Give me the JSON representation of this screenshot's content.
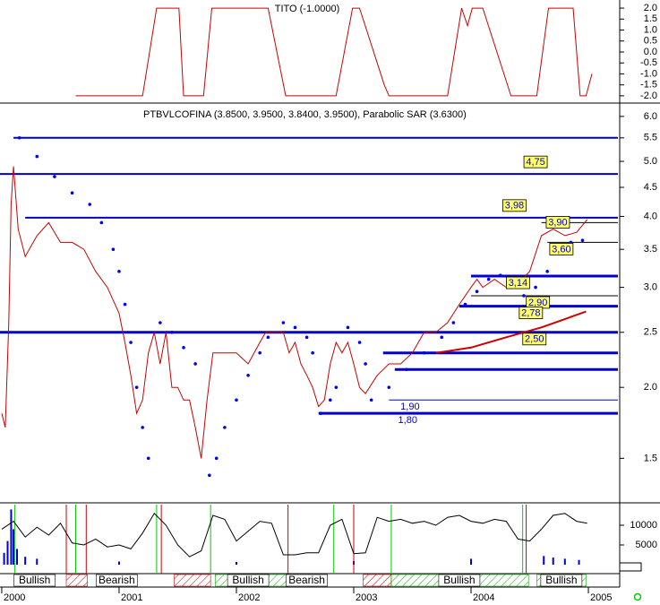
{
  "chart_data": [
    {
      "type": "line",
      "title": "TITO (-1.0000)",
      "color": "#cc0000",
      "xlim": [
        1999.985,
        2005.267
      ],
      "ylim": [
        -2.29,
        2.37
      ],
      "yticks": [
        {
          "value": 2,
          "label": "2.0"
        },
        {
          "value": 1.5,
          "label": "1.5"
        },
        {
          "value": 1,
          "label": "1.0"
        },
        {
          "value": 0.5,
          "label": "0.5"
        },
        {
          "value": 0,
          "label": "0.0"
        },
        {
          "value": -0.5,
          "label": "-0.5"
        },
        {
          "value": -1,
          "label": "-1.0"
        },
        {
          "value": -1.5,
          "label": "-1.5"
        },
        {
          "value": -2,
          "label": "-2.0"
        }
      ],
      "x": [
        2000.63,
        2001.2,
        2001.32,
        2001.51,
        2001.55,
        2001.72,
        2001.79,
        2002.27,
        2002.42,
        2002.85,
        2002.99,
        2003.05,
        2003.26,
        2003.3,
        2003.8,
        2003.92,
        2003.97,
        2004.01,
        2004.1,
        2004.34,
        2004.56,
        2004.66,
        2004.87,
        2004.93,
        2004.98,
        2005.03
      ],
      "values": [
        -2,
        -2,
        2,
        2,
        -2,
        -2,
        2,
        2,
        -2,
        -2,
        2,
        2,
        -1.5,
        -2,
        -2,
        2,
        1.2,
        2,
        2,
        -2,
        -2,
        2,
        2,
        -2,
        -2,
        -1
      ]
    },
    {
      "type": "line",
      "title": "PTBVLCOFINA (3.8500, 3.9500, 3.8400, 3.9500), Parabolic SAR (3.6300)",
      "log_scale": true,
      "xlim": [
        1999.985,
        2005.267
      ],
      "ylim": [
        1.28,
        6.31
      ],
      "yticks": [
        {
          "value": 6,
          "label": "6.0"
        },
        {
          "value": 5.5,
          "label": "5.5"
        },
        {
          "value": 5,
          "label": "5.0"
        },
        {
          "value": 4.5,
          "label": "4.5"
        },
        {
          "value": 4,
          "label": "4.0"
        },
        {
          "value": 3.5,
          "label": "3.5"
        },
        {
          "value": 3,
          "label": "3.0"
        },
        {
          "value": 2.5,
          "label": "2.5"
        },
        {
          "value": 2,
          "label": "2.0"
        },
        {
          "value": 1.5,
          "label": "1.5"
        }
      ],
      "series": [
        {
          "color": "#cc0000",
          "style": "line",
          "x": [
            2000.0,
            2000.03,
            2000.06,
            2000.08,
            2000.1,
            2000.14,
            2000.2,
            2000.3,
            2000.4,
            2000.5,
            2000.6,
            2000.7,
            2000.8,
            2000.9,
            2001.0,
            2001.05,
            2001.1,
            2001.15,
            2001.2,
            2001.25,
            2001.3,
            2001.35,
            2001.4,
            2001.45,
            2001.5,
            2001.55,
            2001.6,
            2001.65,
            2001.7,
            2001.75,
            2001.8,
            2001.9,
            2002.0,
            2002.1,
            2002.2,
            2002.25,
            2002.3,
            2002.4,
            2002.45,
            2002.5,
            2002.55,
            2002.6,
            2002.65,
            2002.7,
            2002.75,
            2002.8,
            2002.85,
            2002.9,
            2002.95,
            2003.0,
            2003.05,
            2003.1,
            2003.2,
            2003.3,
            2003.4,
            2003.5,
            2003.6,
            2003.7,
            2003.8,
            2003.9,
            2004.0,
            2004.05,
            2004.1,
            2004.2,
            2004.3,
            2004.4,
            2004.5,
            2004.6,
            2004.7,
            2004.8,
            2004.9,
            2004.99
          ],
          "values": [
            1.8,
            1.7,
            2.6,
            4.2,
            4.9,
            3.8,
            3.4,
            3.7,
            3.9,
            3.6,
            3.6,
            3.5,
            3.2,
            3.0,
            2.7,
            2.4,
            2.1,
            1.8,
            1.9,
            2.3,
            2.5,
            2.2,
            2.5,
            2.0,
            2.0,
            1.9,
            1.9,
            1.7,
            1.5,
            1.9,
            2.3,
            2.3,
            2.3,
            2.2,
            2.4,
            2.5,
            2.5,
            2.5,
            2.3,
            2.4,
            2.2,
            2.1,
            2.0,
            1.85,
            1.9,
            2.2,
            2.4,
            2.3,
            2.4,
            2.2,
            2.0,
            1.95,
            2.1,
            2.2,
            2.2,
            2.3,
            2.5,
            2.5,
            2.6,
            2.8,
            3.0,
            3.1,
            3.0,
            3.1,
            3.0,
            3.05,
            3.2,
            3.7,
            3.8,
            3.7,
            3.75,
            3.95
          ]
        },
        {
          "color": "#0000ff",
          "style": "dots",
          "x": [
            2000.15,
            2000.3,
            2000.45,
            2000.6,
            2000.75,
            2000.85,
            2000.95,
            2001.0,
            2001.05,
            2001.1,
            2001.15,
            2001.2,
            2001.25,
            2001.35,
            2001.45,
            2001.55,
            2001.65,
            2001.77,
            2001.83,
            2001.9,
            2002.0,
            2002.1,
            2002.2,
            2002.27,
            2002.4,
            2002.5,
            2002.6,
            2002.65,
            2002.72,
            2002.8,
            2002.85,
            2002.95,
            2003.05,
            2003.1,
            2003.15,
            2003.3,
            2003.45,
            2003.6,
            2003.75,
            2003.85,
            2003.95,
            2004.05,
            2004.15,
            2004.25,
            2004.35,
            2004.45,
            2004.55,
            2004.65,
            2004.75,
            2004.85,
            2004.95
          ],
          "values": [
            5.5,
            5.1,
            4.7,
            4.4,
            4.2,
            3.9,
            3.5,
            3.2,
            2.8,
            2.4,
            2.0,
            1.7,
            1.5,
            2.6,
            2.5,
            2.35,
            2.2,
            1.4,
            1.5,
            1.7,
            1.9,
            2.1,
            2.3,
            2.45,
            2.6,
            2.55,
            2.45,
            2.3,
            1.8,
            1.9,
            2.0,
            2.55,
            2.4,
            2.2,
            1.9,
            2.0,
            2.15,
            2.3,
            2.45,
            2.6,
            2.8,
            2.95,
            3.1,
            3.15,
            3.1,
            2.9,
            3.0,
            3.2,
            3.45,
            3.6,
            3.63
          ]
        },
        {
          "color": "#cc0000",
          "style": "line",
          "x": [
            2003.7,
            2004.0,
            2004.3,
            2004.6,
            2004.98
          ],
          "values": [
            2.3,
            2.35,
            2.45,
            2.55,
            2.72
          ]
        }
      ],
      "levels": [
        {
          "value": 5.5,
          "start": 2000.1,
          "color": "#0000cc",
          "width": 2
        },
        {
          "value": 4.75,
          "start": 1999.985,
          "color": "#0000cc",
          "width": 2
        },
        {
          "value": 3.98,
          "start": 2000.2,
          "color": "#0000cc",
          "width": 2
        },
        {
          "value": 3.9,
          "start": 2004.6,
          "color": "#000000",
          "width": 1
        },
        {
          "value": 3.6,
          "start": 2004.65,
          "color": "#000000",
          "width": 1
        },
        {
          "value": 3.14,
          "start": 2004.0,
          "color": "#0000cc",
          "width": 3
        },
        {
          "value": 2.9,
          "start": 2004.0,
          "color": "#000000",
          "width": 1
        },
        {
          "value": 2.78,
          "start": 2003.9,
          "color": "#0000cc",
          "width": 3
        },
        {
          "value": 2.5,
          "start": 1999.985,
          "color": "#0000cc",
          "width": 3
        },
        {
          "value": 2.3,
          "start": 2003.25,
          "color": "#0000cc",
          "width": 3
        },
        {
          "value": 2.15,
          "start": 2003.35,
          "color": "#0000cc",
          "width": 3
        },
        {
          "value": 1.9,
          "start": 2003.3,
          "color": "#0000cc",
          "width": 1
        },
        {
          "value": 1.8,
          "start": 2002.7,
          "color": "#0000cc",
          "width": 3
        }
      ],
      "annotations": [
        {
          "value": 4.75,
          "label": "4,75",
          "x": 2004.55
        },
        {
          "value": 3.98,
          "label": "3,98",
          "x": 2004.37
        },
        {
          "value": 3.9,
          "label": "3,90",
          "x": 2004.74
        },
        {
          "value": 3.6,
          "label": "3,60",
          "x": 2004.77
        },
        {
          "value": 3.14,
          "label": "3,14",
          "x": 2004.4
        },
        {
          "value": 2.9,
          "label": "2,90",
          "x": 2004.57
        },
        {
          "value": 2.78,
          "label": "2,78",
          "x": 2004.51
        },
        {
          "value": 2.5,
          "label": "2,50",
          "x": 2004.54
        },
        {
          "value": 1.9,
          "label": "1,90",
          "x": 2003.48
        },
        {
          "value": 1.8,
          "label": "1,80",
          "x": 2003.46
        }
      ]
    },
    {
      "type": "line",
      "color": "#000000",
      "xlim": [
        1999.985,
        2005.267
      ],
      "ylim": [
        -2270,
        15230
      ],
      "yticks": [
        10000,
        5000
      ],
      "x": [
        2000.0,
        2000.1,
        2000.2,
        2000.3,
        2000.4,
        2000.5,
        2000.6,
        2000.7,
        2000.8,
        2000.9,
        2001.0,
        2001.1,
        2001.2,
        2001.3,
        2001.4,
        2001.5,
        2001.6,
        2001.7,
        2001.8,
        2001.9,
        2002.0,
        2002.1,
        2002.2,
        2002.3,
        2002.4,
        2002.5,
        2002.6,
        2002.7,
        2002.8,
        2002.9,
        2003.0,
        2003.1,
        2003.2,
        2003.3,
        2003.4,
        2003.5,
        2003.6,
        2003.7,
        2003.8,
        2003.9,
        2004.0,
        2004.1,
        2004.2,
        2004.3,
        2004.4,
        2004.5,
        2004.6,
        2004.7,
        2004.8,
        2004.9,
        2004.99
      ],
      "values": [
        9000,
        11000,
        7000,
        9500,
        7500,
        10500,
        5500,
        5000,
        6500,
        4500,
        5000,
        4000,
        8000,
        13000,
        10000,
        5000,
        2000,
        3500,
        12500,
        11500,
        6000,
        8500,
        11000,
        10500,
        2500,
        2500,
        3000,
        3000,
        10000,
        11500,
        2800,
        3000,
        12000,
        11000,
        11500,
        10500,
        11000,
        10000,
        12000,
        12500,
        11000,
        10500,
        11500,
        11000,
        6500,
        6000,
        9000,
        12500,
        13000,
        11000,
        10500
      ],
      "bars": {
        "color": "#0000cc",
        "x": [
          2000.02,
          2000.05,
          2000.08,
          2000.1,
          2000.13,
          2000.2,
          2000.3,
          2001.0,
          2002.0,
          2003.0,
          2004.0,
          2004.62,
          2004.7,
          2004.8,
          2004.92
        ],
        "values": [
          3000,
          6000,
          14000,
          9000,
          4000,
          2000,
          1500,
          800,
          700,
          900,
          1500,
          2200,
          1800,
          1500,
          1200
        ]
      },
      "signals": [
        {
          "x": 2000.11,
          "color": "#00cc00"
        },
        {
          "x": 2000.55,
          "color": "#cc0000"
        },
        {
          "x": 2000.63,
          "color": "#00cc00"
        },
        {
          "x": 2000.72,
          "color": "#cc0000"
        },
        {
          "x": 2001.32,
          "color": "#00cc00"
        },
        {
          "x": 2001.36,
          "color": "#cc0000"
        },
        {
          "x": 2001.78,
          "color": "#00cc00"
        },
        {
          "x": 2002.44,
          "color": "#cc0000"
        },
        {
          "x": 2002.83,
          "color": "#00cc00"
        },
        {
          "x": 2003.0,
          "color": "#cc0000"
        },
        {
          "x": 2003.32,
          "color": "#00cc00"
        },
        {
          "x": 2004.44,
          "color": "#00cc00"
        },
        {
          "x": 2004.47,
          "color": "#cc0000"
        }
      ]
    }
  ],
  "timeline": {
    "xlim": [
      1999.985,
      2005.267
    ],
    "xticks": [
      2000,
      2001,
      2002,
      2003,
      2004,
      2005
    ],
    "regimes": [
      {
        "start": 2000.55,
        "end": 2000.73,
        "color": "#cc0000"
      },
      {
        "start": 2001.47,
        "end": 2001.78,
        "color": "#cc0000"
      },
      {
        "start": 2001.82,
        "end": 2002.44,
        "color": "#00aa00"
      },
      {
        "start": 2003.08,
        "end": 2003.32,
        "color": "#cc0000"
      },
      {
        "start": 2003.32,
        "end": 2004.49,
        "color": "#00aa00"
      },
      {
        "start": 2004.56,
        "end": 2004.98,
        "color": "#00aa00"
      }
    ],
    "labels": [
      {
        "text": "Bullish",
        "x": 2000.28
      },
      {
        "text": "Bearish",
        "x": 2000.98
      },
      {
        "text": "Bullish",
        "x": 2002.1
      },
      {
        "text": "Bearish",
        "x": 2002.6
      },
      {
        "text": "Bullish",
        "x": 2003.9
      },
      {
        "text": "Bullish",
        "x": 2004.77
      }
    ]
  }
}
